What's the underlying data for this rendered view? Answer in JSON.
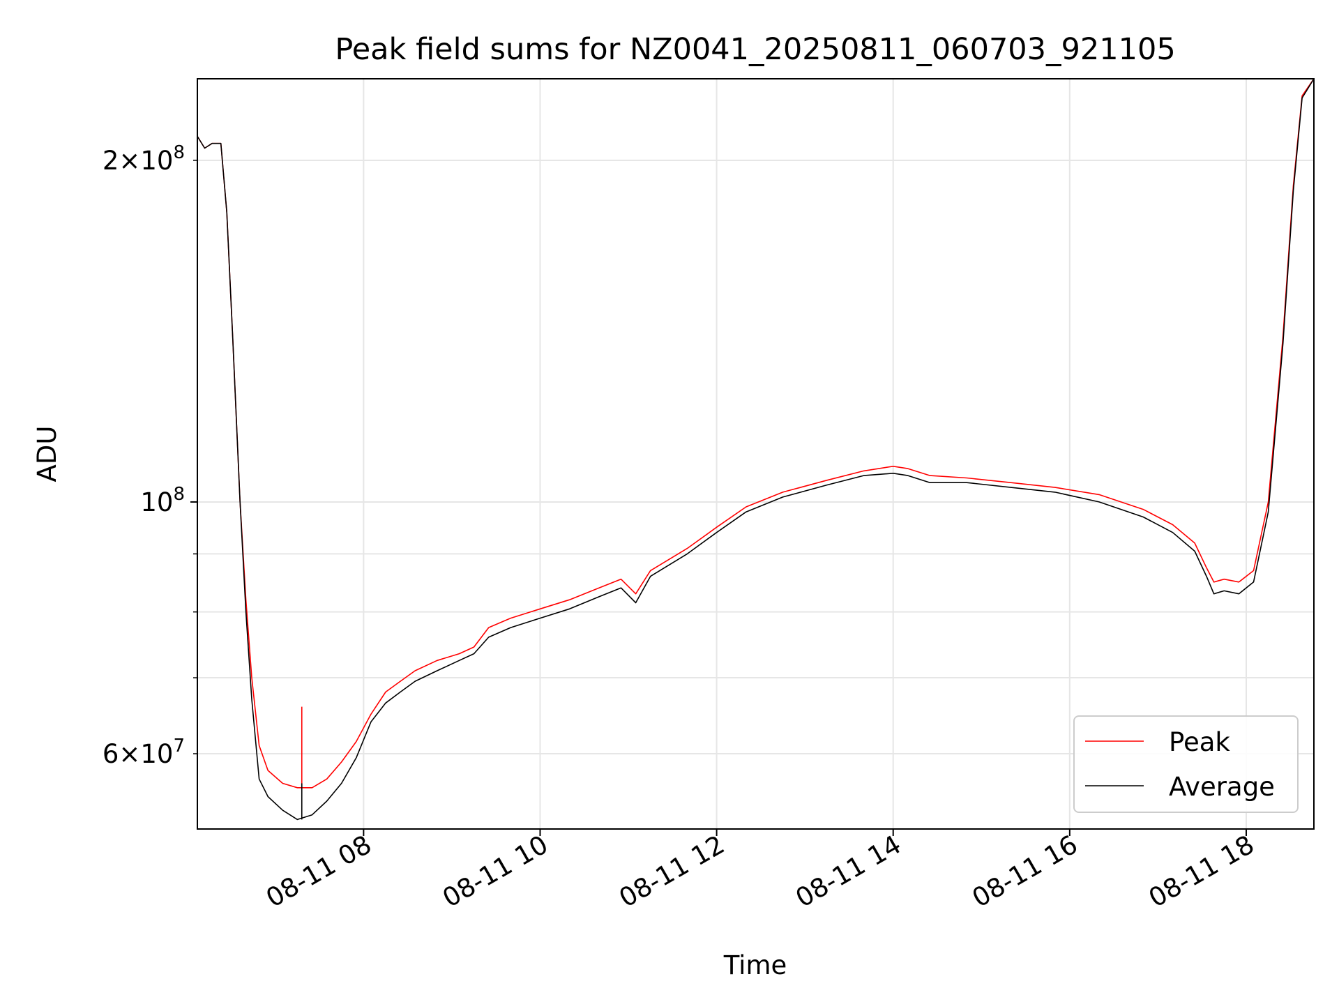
{
  "chart_data": {
    "type": "line",
    "title": "Peak field sums for NZ0041_20250811_060703_921105",
    "xlabel": "Time",
    "ylabel": "ADU",
    "y_scale": "log",
    "grid": true,
    "legend_position": "lower-right",
    "x_range": [
      "2025-08-11 06:07",
      "2025-08-11 18:46"
    ],
    "y_range": [
      51500000,
      236000000
    ],
    "x_ticks": [
      "08-11 08",
      "08-11 10",
      "08-11 12",
      "08-11 14",
      "08-11 16",
      "08-11 18"
    ],
    "y_ticks": [
      {
        "label_mantissa": "6",
        "label_exp": "7",
        "value": 60000000
      },
      {
        "label_mantissa": "",
        "label_exp": "8",
        "value": 100000000
      },
      {
        "label_mantissa": "2",
        "label_exp": "8",
        "value": 200000000
      }
    ],
    "series": [
      {
        "name": "Peak",
        "color": "#ff0000",
        "points": [
          [
            "2025-08-11 06:07",
            210000000
          ],
          [
            "2025-08-11 06:12",
            205000000
          ],
          [
            "2025-08-11 06:17",
            207000000
          ],
          [
            "2025-08-11 06:23",
            207000000
          ],
          [
            "2025-08-11 06:27",
            180000000
          ],
          [
            "2025-08-11 06:31",
            140000000
          ],
          [
            "2025-08-11 06:36",
            100000000
          ],
          [
            "2025-08-11 06:40",
            82000000
          ],
          [
            "2025-08-11 06:44",
            70000000
          ],
          [
            "2025-08-11 06:49",
            61000000
          ],
          [
            "2025-08-11 06:55",
            58000000
          ],
          [
            "2025-08-11 07:05",
            56500000
          ],
          [
            "2025-08-11 07:15",
            56000000
          ],
          [
            "2025-08-11 07:25",
            56000000
          ],
          [
            "2025-08-11 07:35",
            57000000
          ],
          [
            "2025-08-11 07:45",
            59000000
          ],
          [
            "2025-08-11 07:55",
            61500000
          ],
          [
            "2025-08-11 08:05",
            65000000
          ],
          [
            "2025-08-11 08:15",
            68000000
          ],
          [
            "2025-08-11 08:25",
            69500000
          ],
          [
            "2025-08-11 08:35",
            71000000
          ],
          [
            "2025-08-11 08:50",
            72500000
          ],
          [
            "2025-08-11 09:05",
            73500000
          ],
          [
            "2025-08-11 09:15",
            74500000
          ],
          [
            "2025-08-11 09:25",
            77500000
          ],
          [
            "2025-08-11 09:40",
            79000000
          ],
          [
            "2025-08-11 10:00",
            80500000
          ],
          [
            "2025-08-11 10:20",
            82000000
          ],
          [
            "2025-08-11 10:40",
            84000000
          ],
          [
            "2025-08-11 10:55",
            85500000
          ],
          [
            "2025-08-11 11:05",
            83000000
          ],
          [
            "2025-08-11 11:15",
            87000000
          ],
          [
            "2025-08-11 11:40",
            91000000
          ],
          [
            "2025-08-11 12:00",
            95000000
          ],
          [
            "2025-08-11 12:20",
            99000000
          ],
          [
            "2025-08-11 12:45",
            102000000
          ],
          [
            "2025-08-11 13:15",
            104500000
          ],
          [
            "2025-08-11 13:40",
            106500000
          ],
          [
            "2025-08-11 14:00",
            107500000
          ],
          [
            "2025-08-11 14:10",
            107000000
          ],
          [
            "2025-08-11 14:25",
            105500000
          ],
          [
            "2025-08-11 14:50",
            105000000
          ],
          [
            "2025-08-11 15:20",
            104000000
          ],
          [
            "2025-08-11 15:50",
            103000000
          ],
          [
            "2025-08-11 16:20",
            101500000
          ],
          [
            "2025-08-11 16:50",
            98500000
          ],
          [
            "2025-08-11 17:10",
            95500000
          ],
          [
            "2025-08-11 17:25",
            92000000
          ],
          [
            "2025-08-11 17:33",
            87500000
          ],
          [
            "2025-08-11 17:38",
            85000000
          ],
          [
            "2025-08-11 17:45",
            85500000
          ],
          [
            "2025-08-11 17:55",
            85000000
          ],
          [
            "2025-08-11 18:05",
            87000000
          ],
          [
            "2025-08-11 18:15",
            100000000
          ],
          [
            "2025-08-11 18:25",
            140000000
          ],
          [
            "2025-08-11 18:32",
            190000000
          ],
          [
            "2025-08-11 18:38",
            228000000
          ],
          [
            "2025-08-11 18:46",
            236000000
          ]
        ]
      },
      {
        "name": "Average",
        "color": "#000000",
        "points": [
          [
            "2025-08-11 06:07",
            210000000
          ],
          [
            "2025-08-11 06:12",
            205000000
          ],
          [
            "2025-08-11 06:17",
            207000000
          ],
          [
            "2025-08-11 06:23",
            207000000
          ],
          [
            "2025-08-11 06:27",
            180000000
          ],
          [
            "2025-08-11 06:31",
            140000000
          ],
          [
            "2025-08-11 06:36",
            100000000
          ],
          [
            "2025-08-11 06:40",
            80000000
          ],
          [
            "2025-08-11 06:44",
            67000000
          ],
          [
            "2025-08-11 06:49",
            57000000
          ],
          [
            "2025-08-11 06:55",
            55000000
          ],
          [
            "2025-08-11 07:05",
            53500000
          ],
          [
            "2025-08-11 07:15",
            52500000
          ],
          [
            "2025-08-11 07:25",
            53000000
          ],
          [
            "2025-08-11 07:35",
            54500000
          ],
          [
            "2025-08-11 07:45",
            56500000
          ],
          [
            "2025-08-11 07:55",
            59500000
          ],
          [
            "2025-08-11 08:05",
            64000000
          ],
          [
            "2025-08-11 08:15",
            66500000
          ],
          [
            "2025-08-11 08:25",
            68000000
          ],
          [
            "2025-08-11 08:35",
            69500000
          ],
          [
            "2025-08-11 08:50",
            71000000
          ],
          [
            "2025-08-11 09:05",
            72500000
          ],
          [
            "2025-08-11 09:15",
            73500000
          ],
          [
            "2025-08-11 09:25",
            76000000
          ],
          [
            "2025-08-11 09:40",
            77500000
          ],
          [
            "2025-08-11 10:00",
            79000000
          ],
          [
            "2025-08-11 10:20",
            80500000
          ],
          [
            "2025-08-11 10:40",
            82500000
          ],
          [
            "2025-08-11 10:55",
            84000000
          ],
          [
            "2025-08-11 11:05",
            81500000
          ],
          [
            "2025-08-11 11:15",
            86000000
          ],
          [
            "2025-08-11 11:40",
            90000000
          ],
          [
            "2025-08-11 12:00",
            94000000
          ],
          [
            "2025-08-11 12:20",
            98000000
          ],
          [
            "2025-08-11 12:45",
            101000000
          ],
          [
            "2025-08-11 13:15",
            103500000
          ],
          [
            "2025-08-11 13:40",
            105500000
          ],
          [
            "2025-08-11 14:00",
            106000000
          ],
          [
            "2025-08-11 14:10",
            105500000
          ],
          [
            "2025-08-11 14:25",
            104000000
          ],
          [
            "2025-08-11 14:50",
            104000000
          ],
          [
            "2025-08-11 15:20",
            103000000
          ],
          [
            "2025-08-11 15:50",
            102000000
          ],
          [
            "2025-08-11 16:20",
            100000000
          ],
          [
            "2025-08-11 16:50",
            97000000
          ],
          [
            "2025-08-11 17:10",
            94000000
          ],
          [
            "2025-08-11 17:25",
            90500000
          ],
          [
            "2025-08-11 17:33",
            86000000
          ],
          [
            "2025-08-11 17:38",
            83000000
          ],
          [
            "2025-08-11 17:45",
            83500000
          ],
          [
            "2025-08-11 17:55",
            83000000
          ],
          [
            "2025-08-11 18:05",
            85000000
          ],
          [
            "2025-08-11 18:15",
            98000000
          ],
          [
            "2025-08-11 18:25",
            138000000
          ],
          [
            "2025-08-11 18:32",
            188000000
          ],
          [
            "2025-08-11 18:38",
            227000000
          ],
          [
            "2025-08-11 18:46",
            236000000
          ]
        ]
      }
    ],
    "annotations": [
      {
        "series": "Peak",
        "time": "2025-08-11 07:18",
        "value": 66000000,
        "kind": "spike"
      },
      {
        "series": "Average",
        "time": "2025-08-11 07:18",
        "value": 56500000,
        "kind": "spike"
      }
    ]
  }
}
